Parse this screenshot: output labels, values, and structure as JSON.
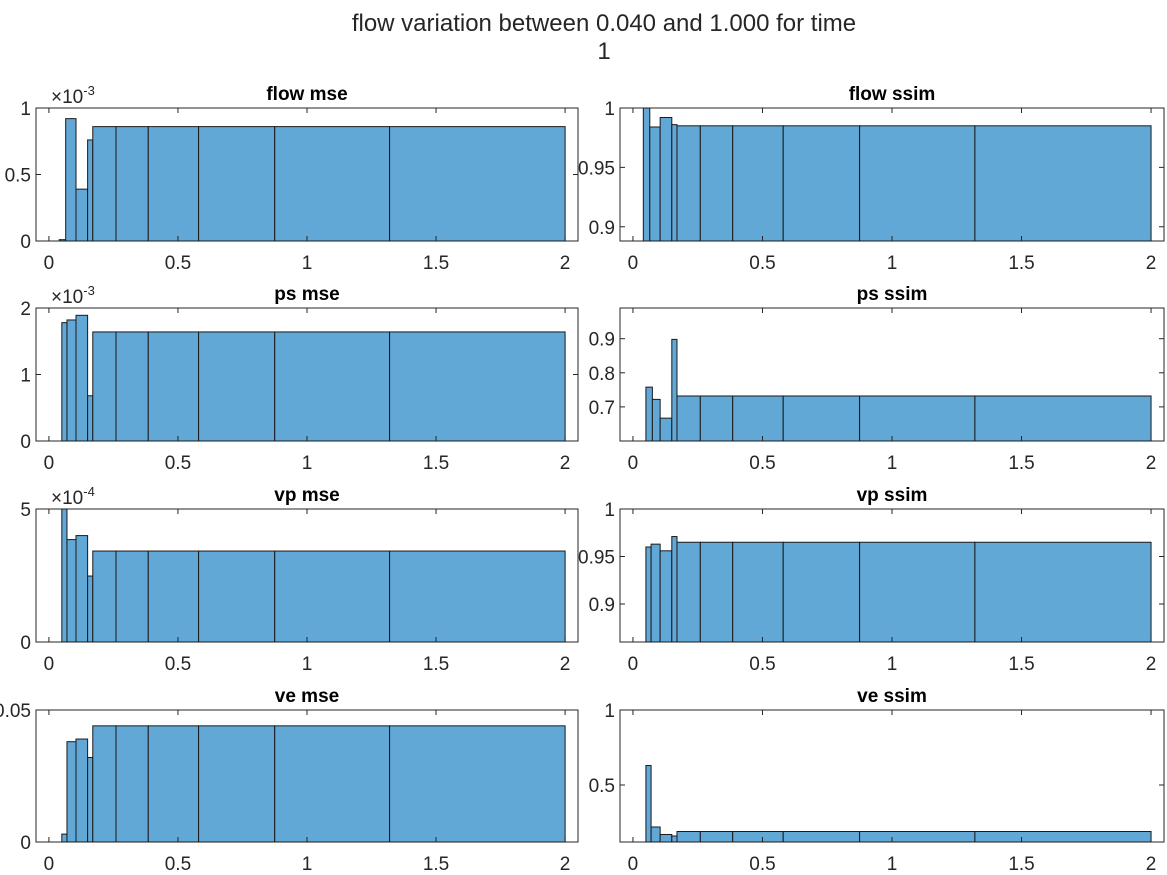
{
  "suptitle_line1": "flow variation between 0.040 and 1.000 for time",
  "suptitle_line2": "1",
  "colors": {
    "bar_fill": "#62a8d7",
    "bar_edge": "#1a1a1a",
    "axis": "#262626",
    "text": "#262626"
  },
  "chart_data": [
    {
      "type": "bar",
      "title": "flow mse",
      "exponent": "-3",
      "xlim": [
        -0.05,
        2.05
      ],
      "ylim": [
        0,
        1.0
      ],
      "xticks": [
        0,
        0.5,
        1,
        1.5,
        2
      ],
      "xtick_labels": [
        "0",
        "0.5",
        "1",
        "1.5",
        "2"
      ],
      "yticks": [
        0,
        0.5,
        1
      ],
      "ytick_labels": [
        "0",
        "0.5",
        "1"
      ],
      "bin_edges": [
        0.04,
        0.065,
        0.105,
        0.15,
        0.17,
        0.26,
        0.385,
        0.58,
        0.875,
        1.32,
        2.0
      ],
      "values": [
        0.01,
        0.92,
        0.39,
        0.76,
        0.86,
        0.86,
        0.86,
        0.86,
        0.86,
        0.86
      ]
    },
    {
      "type": "bar",
      "title": "flow ssim",
      "exponent": "",
      "xlim": [
        -0.05,
        2.05
      ],
      "ylim": [
        0.888,
        1.0
      ],
      "xticks": [
        0,
        0.5,
        1,
        1.5,
        2
      ],
      "xtick_labels": [
        "0",
        "0.5",
        "1",
        "1.5",
        "2"
      ],
      "yticks": [
        0.9,
        0.95,
        1
      ],
      "ytick_labels": [
        "0.9",
        "0.95",
        "1"
      ],
      "bin_edges": [
        0.04,
        0.065,
        0.105,
        0.15,
        0.17,
        0.26,
        0.385,
        0.58,
        0.875,
        1.32,
        2.0
      ],
      "values": [
        1.0,
        0.984,
        0.992,
        0.986,
        0.985,
        0.985,
        0.985,
        0.985,
        0.985,
        0.985
      ]
    },
    {
      "type": "bar",
      "title": "ps mse",
      "exponent": "-3",
      "xlim": [
        -0.05,
        2.05
      ],
      "ylim": [
        0,
        2.0
      ],
      "xticks": [
        0,
        0.5,
        1,
        1.5,
        2
      ],
      "xtick_labels": [
        "0",
        "0.5",
        "1",
        "1.5",
        "2"
      ],
      "yticks": [
        0,
        1,
        2
      ],
      "ytick_labels": [
        "0",
        "1",
        "2"
      ],
      "bin_edges": [
        0.05,
        0.07,
        0.105,
        0.15,
        0.17,
        0.26,
        0.385,
        0.58,
        0.875,
        1.32,
        2.0
      ],
      "values": [
        1.78,
        1.82,
        1.89,
        0.68,
        1.64,
        1.64,
        1.64,
        1.64,
        1.64,
        1.64
      ]
    },
    {
      "type": "bar",
      "title": "ps ssim",
      "exponent": "",
      "xlim": [
        -0.05,
        2.05
      ],
      "ylim": [
        0.6,
        0.99
      ],
      "xticks": [
        0,
        0.5,
        1,
        1.5,
        2
      ],
      "xtick_labels": [
        "0",
        "0.5",
        "1",
        "1.5",
        "2"
      ],
      "yticks": [
        0.7,
        0.8,
        0.9
      ],
      "ytick_labels": [
        "0.7",
        "0.8",
        "0.9"
      ],
      "bin_edges": [
        0.05,
        0.075,
        0.105,
        0.15,
        0.17,
        0.26,
        0.385,
        0.58,
        0.875,
        1.32,
        2.0
      ],
      "values": [
        0.758,
        0.722,
        0.667,
        0.898,
        0.732,
        0.732,
        0.732,
        0.732,
        0.732,
        0.732
      ]
    },
    {
      "type": "bar",
      "title": "vp mse",
      "exponent": "-4",
      "xlim": [
        -0.05,
        2.05
      ],
      "ylim": [
        0,
        5.0
      ],
      "xticks": [
        0,
        0.5,
        1,
        1.5,
        2
      ],
      "xtick_labels": [
        "0",
        "0.5",
        "1",
        "1.5",
        "2"
      ],
      "yticks": [
        0,
        5
      ],
      "ytick_labels": [
        "0",
        "5"
      ],
      "bin_edges": [
        0.05,
        0.07,
        0.105,
        0.15,
        0.17,
        0.26,
        0.385,
        0.58,
        0.875,
        1.32,
        2.0
      ],
      "values": [
        5.0,
        3.85,
        4.0,
        2.48,
        3.42,
        3.42,
        3.42,
        3.42,
        3.42,
        3.42
      ]
    },
    {
      "type": "bar",
      "title": "vp ssim",
      "exponent": "",
      "xlim": [
        -0.05,
        2.05
      ],
      "ylim": [
        0.86,
        1.0
      ],
      "xticks": [
        0,
        0.5,
        1,
        1.5,
        2
      ],
      "xtick_labels": [
        "0",
        "0.5",
        "1",
        "1.5",
        "2"
      ],
      "yticks": [
        0.9,
        0.95,
        1
      ],
      "ytick_labels": [
        "0.9",
        "0.95",
        "1"
      ],
      "bin_edges": [
        0.05,
        0.07,
        0.105,
        0.15,
        0.17,
        0.26,
        0.385,
        0.58,
        0.875,
        1.32,
        2.0
      ],
      "values": [
        0.96,
        0.963,
        0.956,
        0.971,
        0.965,
        0.965,
        0.965,
        0.965,
        0.965,
        0.965
      ]
    },
    {
      "type": "bar",
      "title": "ve mse",
      "exponent": "",
      "xlim": [
        -0.05,
        2.05
      ],
      "ylim": [
        0,
        0.05
      ],
      "xticks": [
        0,
        0.5,
        1,
        1.5,
        2
      ],
      "xtick_labels": [
        "0",
        "0.5",
        "1",
        "1.5",
        "2"
      ],
      "yticks": [
        0,
        0.05
      ],
      "ytick_labels": [
        "0",
        "0.05"
      ],
      "bin_edges": [
        0.05,
        0.07,
        0.105,
        0.15,
        0.17,
        0.26,
        0.385,
        0.58,
        0.875,
        1.32,
        2.0
      ],
      "values": [
        0.003,
        0.038,
        0.039,
        0.032,
        0.044,
        0.044,
        0.044,
        0.044,
        0.044,
        0.044
      ]
    },
    {
      "type": "bar",
      "title": "ve ssim",
      "exponent": "",
      "xlim": [
        -0.05,
        2.05
      ],
      "ylim": [
        0.12,
        1.0
      ],
      "xticks": [
        0,
        0.5,
        1,
        1.5,
        2
      ],
      "xtick_labels": [
        "0",
        "0.5",
        "1",
        "1.5",
        "2"
      ],
      "yticks": [
        0.5,
        1
      ],
      "ytick_labels": [
        "0.5",
        "1"
      ],
      "bin_edges": [
        0.05,
        0.07,
        0.105,
        0.15,
        0.17,
        0.26,
        0.385,
        0.58,
        0.875,
        1.32,
        2.0
      ],
      "values": [
        0.63,
        0.22,
        0.17,
        0.16,
        0.19,
        0.19,
        0.19,
        0.19,
        0.19,
        0.19
      ]
    }
  ]
}
